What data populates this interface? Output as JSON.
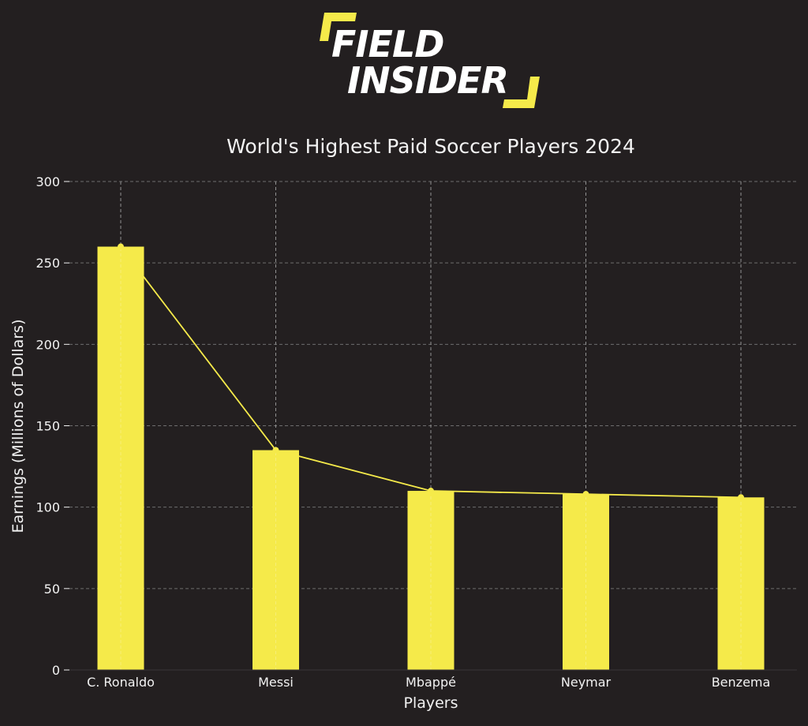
{
  "logo": {
    "line1": "FIELD",
    "line2": "INSIDER"
  },
  "colors": {
    "background": "#231f20",
    "accent": "#f5ea4a",
    "text": "#f2f2f2",
    "grid": "#6e6e6e"
  },
  "chart_data": {
    "type": "bar",
    "title": "World's Highest Paid Soccer Players 2024",
    "xlabel": "Players",
    "ylabel": "Earnings (Millions of Dollars)",
    "categories": [
      "C. Ronaldo",
      "Messi",
      "Mbappé",
      "Neymar",
      "Benzema"
    ],
    "values": [
      260,
      135,
      110,
      108,
      106
    ],
    "ylim": [
      0,
      300
    ],
    "yticks": [
      0,
      50,
      100,
      150,
      200,
      250,
      300
    ],
    "ytick_labels": [
      "0",
      "50",
      "100",
      "150",
      "200",
      "250",
      "300"
    ],
    "overlay": "line",
    "grid": true,
    "grid_style": "dashed",
    "legend": "none"
  }
}
